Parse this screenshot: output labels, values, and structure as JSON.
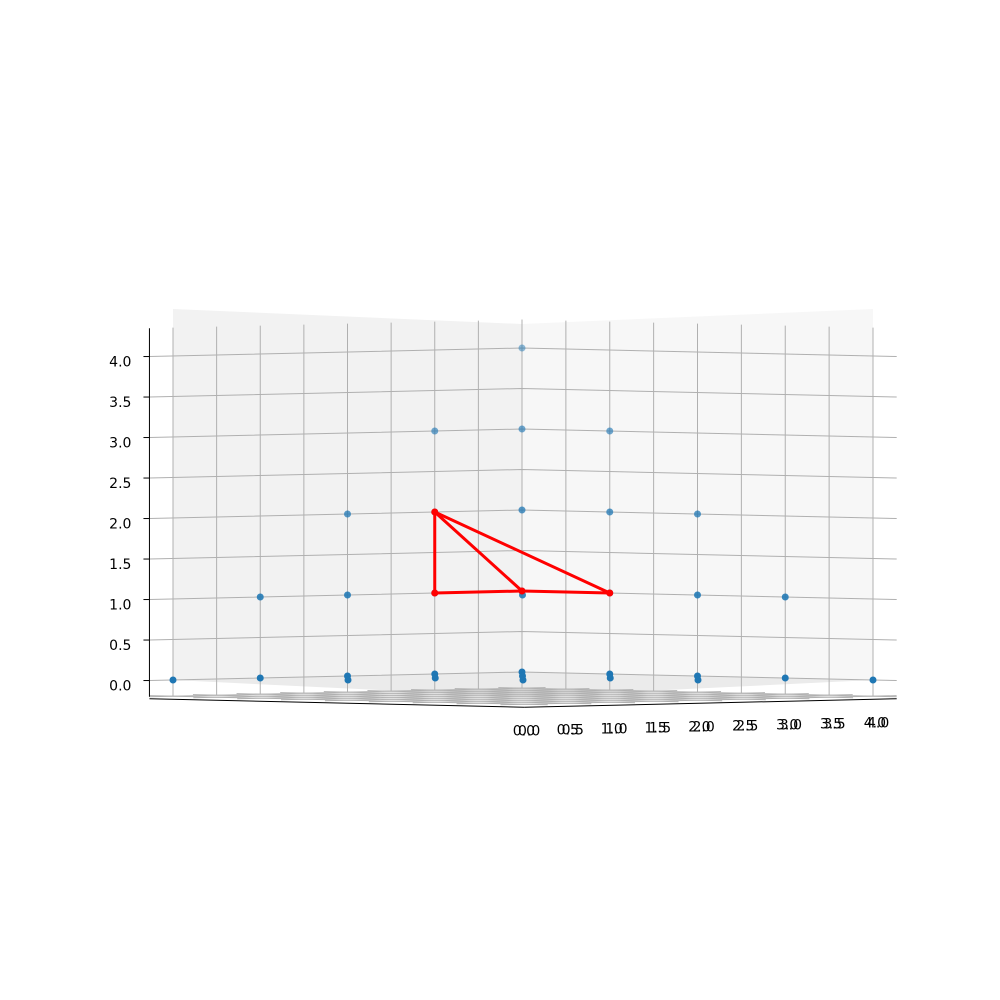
{
  "chart_data": {
    "type": "scatter",
    "projection": "3d",
    "title": "",
    "axes": {
      "x": {
        "label": "",
        "ticks": [
          "0.0",
          "0.5",
          "1.0",
          "1.5",
          "2.0",
          "2.5",
          "3.0",
          "3.5",
          "4.0"
        ],
        "range": [
          0,
          4
        ]
      },
      "y": {
        "label": "",
        "ticks": [
          "0.0",
          "0.5",
          "1.0",
          "1.5",
          "2.0",
          "2.5",
          "3.0",
          "3.5",
          "4.0"
        ],
        "range": [
          0,
          4
        ]
      },
      "z": {
        "label": "",
        "ticks": [
          "0.0",
          "0.5",
          "1.0",
          "1.5",
          "2.0",
          "2.5",
          "3.0",
          "3.5",
          "4.0"
        ],
        "range": [
          0,
          4
        ]
      }
    },
    "grid": true,
    "points": [
      [
        0,
        4,
        0
      ],
      [
        1,
        4,
        0
      ],
      [
        2,
        4,
        0
      ],
      [
        3,
        4,
        0
      ],
      [
        4,
        4,
        0
      ],
      [
        4,
        3,
        0
      ],
      [
        4,
        2,
        0
      ],
      [
        4,
        1,
        0
      ],
      [
        4,
        0,
        0
      ],
      [
        1,
        3,
        0
      ],
      [
        2,
        2,
        0
      ],
      [
        3,
        1,
        0
      ],
      [
        2,
        3,
        0
      ],
      [
        3,
        2,
        0
      ],
      [
        3,
        3,
        0
      ],
      [
        1,
        4,
        1
      ],
      [
        2,
        4,
        1
      ],
      [
        3,
        4,
        1
      ],
      [
        4,
        4,
        1
      ],
      [
        4,
        3,
        1
      ],
      [
        4,
        2,
        1
      ],
      [
        4,
        1,
        1
      ],
      [
        3,
        3,
        1
      ],
      [
        2,
        4,
        2
      ],
      [
        3,
        4,
        2
      ],
      [
        4,
        4,
        2
      ],
      [
        4,
        3,
        2
      ],
      [
        4,
        2,
        2
      ],
      [
        3,
        4,
        3
      ],
      [
        4,
        4,
        3
      ],
      [
        4,
        3,
        3
      ],
      [
        4,
        4,
        4
      ]
    ],
    "highlight": {
      "color": "#ff0000",
      "vertices": [
        [
          3,
          4,
          2
        ],
        [
          3,
          4,
          1
        ],
        [
          4,
          4,
          1
        ],
        [
          4,
          3,
          1
        ]
      ],
      "edges": [
        [
          0,
          1
        ],
        [
          1,
          2
        ],
        [
          2,
          3
        ],
        [
          3,
          0
        ],
        [
          0,
          2
        ]
      ]
    },
    "point_color": "#1f77b4"
  }
}
